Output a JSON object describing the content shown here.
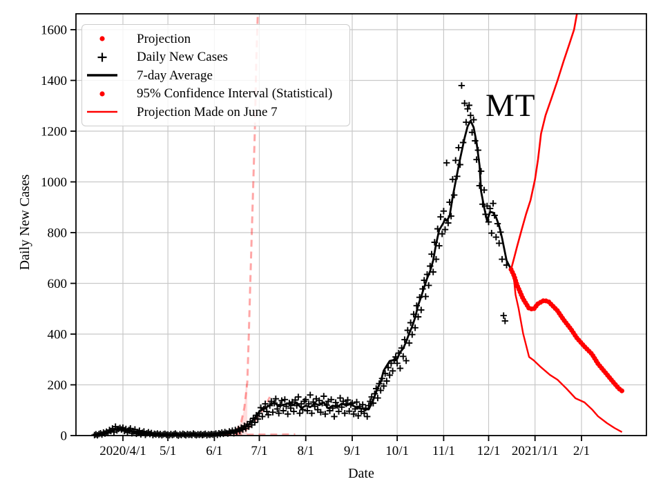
{
  "legend": {
    "items": [
      {
        "label": "Projection",
        "marker": "dot",
        "color": "#ff0000"
      },
      {
        "label": "Daily New Cases",
        "marker": "plus",
        "color": "#000000"
      },
      {
        "label": "7-day Average",
        "marker": "line",
        "color": "#000000"
      },
      {
        "label": "95% Confidence Interval (Statistical)",
        "marker": "dot",
        "color": "#ff0000"
      },
      {
        "label": "Projection Made on June 7",
        "marker": "line",
        "color": "#ff0000"
      }
    ]
  },
  "chart_data": {
    "type": "line+scatter",
    "title": "",
    "xlabel": "Date",
    "ylabel": "Daily New Cases",
    "annotation": "MT",
    "ylim": [
      0,
      1662
    ],
    "xlim": [
      "2020-03-01",
      "2021-03-16"
    ],
    "grid": true,
    "legend_position": "upper-left",
    "y_ticks": [
      0,
      200,
      400,
      600,
      800,
      1000,
      1200,
      1400,
      1600
    ],
    "x_ticks": [
      {
        "date": "2020-04-01",
        "label": "2020/4/1"
      },
      {
        "date": "2020-05-01",
        "label": "5/1"
      },
      {
        "date": "2020-06-01",
        "label": "6/1"
      },
      {
        "date": "2020-07-01",
        "label": "7/1"
      },
      {
        "date": "2020-08-01",
        "label": "8/1"
      },
      {
        "date": "2020-09-01",
        "label": "9/1"
      },
      {
        "date": "2020-10-01",
        "label": "10/1"
      },
      {
        "date": "2020-11-01",
        "label": "11/1"
      },
      {
        "date": "2020-12-01",
        "label": "12/1"
      },
      {
        "date": "2021-01-01",
        "label": "2021/1/1"
      },
      {
        "date": "2021-02-01",
        "label": "2/1"
      }
    ],
    "style": {
      "red": "#ff0000",
      "black": "#000000",
      "faded_red": "rgba(255,0,0,0.35)",
      "band_fill": "rgba(255,0,0,0.13)",
      "grid_color": "#c8c8c8",
      "background": "#ffffff"
    },
    "series": [
      {
        "name": "daily_new_cases",
        "type": "scatter",
        "marker": "plus",
        "color": "#000000",
        "start_date": "2020-03-13",
        "values": [
          2,
          5,
          1,
          6,
          9,
          4,
          12,
          8,
          15,
          10,
          22,
          18,
          28,
          14,
          35,
          20,
          26,
          30,
          24,
          31,
          18,
          26,
          12,
          22,
          28,
          9,
          16,
          24,
          7,
          14,
          19,
          5,
          11,
          16,
          3,
          9,
          13,
          6,
          10,
          2,
          7,
          4,
          8,
          3,
          6,
          1,
          5,
          7,
          3,
          4,
          1,
          6,
          2,
          5,
          8,
          3,
          0,
          5,
          2,
          7,
          4,
          1,
          6,
          3,
          5,
          2,
          8,
          4,
          1,
          5,
          3,
          6,
          2,
          4,
          7,
          1,
          5,
          3,
          6,
          4,
          5,
          8,
          3,
          9,
          6,
          12,
          7,
          14,
          10,
          8,
          16,
          12,
          19,
          9,
          22,
          15,
          26,
          18,
          31,
          24,
          38,
          28,
          45,
          35,
          55,
          42,
          68,
          52,
          80,
          65,
          88,
          110,
          75,
          105,
          125,
          95,
          82,
          118,
          135,
          92,
          128,
          145,
          105,
          88,
          122,
          138,
          98,
          142,
          115,
          85,
          128,
          108,
          132,
          95,
          140,
          118,
          152,
          88,
          125,
          102,
          135,
          142,
          98,
          125,
          160,
          88,
          132,
          115,
          145,
          102,
          138,
          92,
          128,
          155,
          85,
          120,
          135,
          98,
          142,
          108,
          75,
          130,
          118,
          95,
          148,
          112,
          135,
          88,
          125,
          140,
          96,
          122,
          128,
          85,
          105,
          132,
          78,
          115,
          95,
          122,
          88,
          108,
          75,
          118,
          135,
          152,
          128,
          165,
          185,
          148,
          205,
          178,
          225,
          195,
          245,
          215,
          268,
          238,
          285,
          255,
          295,
          310,
          285,
          325,
          265,
          345,
          312,
          378,
          295,
          415,
          365,
          445,
          398,
          478,
          425,
          512,
          468,
          545,
          495,
          578,
          612,
          548,
          635,
          592,
          668,
          715,
          645,
          762,
          695,
          815,
          748,
          862,
          795,
          885,
          812,
          1075,
          838,
          920,
          865,
          1010,
          948,
          1085,
          1022,
          1135,
          1068,
          1380,
          1155,
          1310,
          1235,
          1288,
          1302,
          1262,
          1195,
          1245,
          1162,
          1088,
          1125,
          985,
          1042,
          912,
          968,
          872,
          905,
          842,
          895,
          798,
          915,
          868,
          782,
          835,
          758,
          802,
          695,
          473,
          452,
          672
        ]
      },
      {
        "name": "seven_day_average",
        "type": "line",
        "color": "#000000",
        "points": [
          [
            "2020-03-14",
            3
          ],
          [
            "2020-03-18",
            9
          ],
          [
            "2020-03-22",
            15
          ],
          [
            "2020-03-26",
            22
          ],
          [
            "2020-03-30",
            25
          ],
          [
            "2020-04-03",
            21
          ],
          [
            "2020-04-08",
            15
          ],
          [
            "2020-04-14",
            9
          ],
          [
            "2020-04-20",
            6
          ],
          [
            "2020-04-28",
            4
          ],
          [
            "2020-05-06",
            3
          ],
          [
            "2020-05-14",
            3
          ],
          [
            "2020-05-22",
            4
          ],
          [
            "2020-05-29",
            5
          ],
          [
            "2020-06-05",
            8
          ],
          [
            "2020-06-10",
            12
          ],
          [
            "2020-06-15",
            18
          ],
          [
            "2020-06-20",
            30
          ],
          [
            "2020-06-24",
            45
          ],
          [
            "2020-06-28",
            70
          ],
          [
            "2020-07-01",
            95
          ],
          [
            "2020-07-04",
            105
          ],
          [
            "2020-07-08",
            120
          ],
          [
            "2020-07-11",
            130
          ],
          [
            "2020-07-14",
            115
          ],
          [
            "2020-07-17",
            121
          ],
          [
            "2020-07-20",
            126
          ],
          [
            "2020-07-23",
            119
          ],
          [
            "2020-07-26",
            130
          ],
          [
            "2020-07-29",
            108
          ],
          [
            "2020-08-01",
            118
          ],
          [
            "2020-08-04",
            112
          ],
          [
            "2020-08-07",
            126
          ],
          [
            "2020-08-10",
            120
          ],
          [
            "2020-08-13",
            131
          ],
          [
            "2020-08-16",
            107
          ],
          [
            "2020-08-19",
            118
          ],
          [
            "2020-08-22",
            112
          ],
          [
            "2020-08-25",
            126
          ],
          [
            "2020-08-28",
            119
          ],
          [
            "2020-08-31",
            124
          ],
          [
            "2020-09-03",
            113
          ],
          [
            "2020-09-06",
            108
          ],
          [
            "2020-09-09",
            104
          ],
          [
            "2020-09-12",
            103
          ],
          [
            "2020-09-15",
            140
          ],
          [
            "2020-09-18",
            188
          ],
          [
            "2020-09-20",
            212
          ],
          [
            "2020-09-22",
            256
          ],
          [
            "2020-09-24",
            275
          ],
          [
            "2020-09-26",
            294
          ],
          [
            "2020-09-28",
            297
          ],
          [
            "2020-10-01",
            302
          ],
          [
            "2020-10-03",
            329
          ],
          [
            "2020-10-05",
            343
          ],
          [
            "2020-10-07",
            370
          ],
          [
            "2020-10-09",
            403
          ],
          [
            "2020-10-11",
            430
          ],
          [
            "2020-10-13",
            465
          ],
          [
            "2020-10-15",
            514
          ],
          [
            "2020-10-17",
            547
          ],
          [
            "2020-10-19",
            585
          ],
          [
            "2020-10-21",
            620
          ],
          [
            "2020-10-23",
            648
          ],
          [
            "2020-10-25",
            690
          ],
          [
            "2020-10-27",
            756
          ],
          [
            "2020-10-29",
            810
          ],
          [
            "2020-11-01",
            840
          ],
          [
            "2020-11-02",
            855
          ],
          [
            "2020-11-03",
            846
          ],
          [
            "2020-11-05",
            865
          ],
          [
            "2020-11-07",
            940
          ],
          [
            "2020-11-09",
            1001
          ],
          [
            "2020-11-12",
            1091
          ],
          [
            "2020-11-15",
            1173
          ],
          [
            "2020-11-17",
            1219
          ],
          [
            "2020-11-19",
            1241
          ],
          [
            "2020-11-21",
            1215
          ],
          [
            "2020-11-23",
            1154
          ],
          [
            "2020-11-25",
            1064
          ],
          [
            "2020-11-26",
            963
          ],
          [
            "2020-11-28",
            900
          ],
          [
            "2020-11-30",
            846
          ],
          [
            "2020-12-02",
            882
          ],
          [
            "2020-12-04",
            879
          ],
          [
            "2020-12-06",
            860
          ],
          [
            "2020-12-08",
            827
          ],
          [
            "2020-12-10",
            778
          ],
          [
            "2020-12-13",
            690
          ],
          [
            "2020-12-16",
            655
          ]
        ]
      },
      {
        "name": "projection",
        "type": "line",
        "style_hint": "thick-dotted",
        "color": "#ff0000",
        "points": [
          [
            "2020-12-16",
            655
          ],
          [
            "2020-12-18",
            630
          ],
          [
            "2020-12-20",
            593
          ],
          [
            "2020-12-24",
            539
          ],
          [
            "2020-12-28",
            501
          ],
          [
            "2020-12-31",
            498
          ],
          [
            "2021-01-03",
            520
          ],
          [
            "2021-01-07",
            533
          ],
          [
            "2021-01-10",
            528
          ],
          [
            "2021-01-16",
            492
          ],
          [
            "2021-01-20",
            457
          ],
          [
            "2021-01-25",
            419
          ],
          [
            "2021-01-29",
            384
          ],
          [
            "2021-02-03",
            351
          ],
          [
            "2021-02-08",
            321
          ],
          [
            "2021-02-12",
            283
          ],
          [
            "2021-02-17",
            248
          ],
          [
            "2021-02-22",
            212
          ],
          [
            "2021-02-26",
            185
          ],
          [
            "2021-02-28",
            176
          ]
        ]
      },
      {
        "name": "ci_upper",
        "type": "line",
        "color": "#ff0000",
        "points": [
          [
            "2020-12-16",
            655
          ],
          [
            "2020-12-18",
            700
          ],
          [
            "2020-12-20",
            745
          ],
          [
            "2020-12-23",
            810
          ],
          [
            "2020-12-26",
            873
          ],
          [
            "2020-12-29",
            928
          ],
          [
            "2021-01-01",
            1010
          ],
          [
            "2021-01-03",
            1090
          ],
          [
            "2021-01-05",
            1190
          ],
          [
            "2021-01-08",
            1262
          ],
          [
            "2021-01-12",
            1330
          ],
          [
            "2021-01-16",
            1400
          ],
          [
            "2021-01-20",
            1475
          ],
          [
            "2021-01-24",
            1545
          ],
          [
            "2021-01-27",
            1600
          ],
          [
            "2021-01-29",
            1665
          ]
        ]
      },
      {
        "name": "ci_lower",
        "type": "line",
        "color": "#ff0000",
        "points": [
          [
            "2020-12-16",
            655
          ],
          [
            "2020-12-18",
            610
          ],
          [
            "2020-12-19",
            555
          ],
          [
            "2020-12-21",
            501
          ],
          [
            "2020-12-24",
            403
          ],
          [
            "2020-12-28",
            310
          ],
          [
            "2020-12-31",
            297
          ],
          [
            "2021-01-05",
            269
          ],
          [
            "2021-01-11",
            239
          ],
          [
            "2021-01-16",
            220
          ],
          [
            "2021-01-22",
            185
          ],
          [
            "2021-01-28",
            147
          ],
          [
            "2021-02-03",
            131
          ],
          [
            "2021-02-08",
            103
          ],
          [
            "2021-02-12",
            76
          ],
          [
            "2021-02-18",
            49
          ],
          [
            "2021-02-23",
            30
          ],
          [
            "2021-02-28",
            14
          ]
        ]
      },
      {
        "name": "june7_ci_upper",
        "type": "line",
        "style_hint": "dashed-faded",
        "color": "rgba(255,0,0,0.35)",
        "points": [
          [
            "2020-06-07",
            3
          ],
          [
            "2020-06-12",
            8
          ],
          [
            "2020-06-16",
            22
          ],
          [
            "2020-06-19",
            55
          ],
          [
            "2020-06-21",
            110
          ],
          [
            "2020-06-23",
            210
          ],
          [
            "2020-06-24",
            400
          ],
          [
            "2020-06-25",
            600
          ],
          [
            "2020-06-26",
            800
          ],
          [
            "2020-06-27",
            1000
          ],
          [
            "2020-06-28",
            1200
          ],
          [
            "2020-06-29",
            1480
          ],
          [
            "2020-06-30",
            1665
          ]
        ]
      },
      {
        "name": "june7_projection_median",
        "type": "line",
        "style_hint": "dashed-faded",
        "color": "rgba(255,0,0,0.35)",
        "points": [
          [
            "2020-06-07",
            2
          ],
          [
            "2020-06-14",
            6
          ],
          [
            "2020-06-18",
            12
          ],
          [
            "2020-06-22",
            22
          ],
          [
            "2020-06-25",
            35
          ],
          [
            "2020-06-28",
            55
          ],
          [
            "2020-07-01",
            84
          ],
          [
            "2020-07-03",
            98
          ],
          [
            "2020-07-05",
            115
          ],
          [
            "2020-07-07",
            140
          ],
          [
            "2020-07-08",
            152
          ]
        ]
      },
      {
        "name": "june7_ci_lower",
        "type": "line",
        "style_hint": "dashed-faded",
        "color": "rgba(255,0,0,0.35)",
        "points": [
          [
            "2020-06-07",
            1
          ],
          [
            "2020-06-20",
            3
          ],
          [
            "2020-07-01",
            4
          ],
          [
            "2020-07-12",
            4
          ],
          [
            "2020-07-25",
            5
          ]
        ]
      },
      {
        "name": "june7_confidence_band",
        "type": "band",
        "color": "rgba(255,0,0,0.13)",
        "points": [
          [
            "2020-06-07",
            2
          ],
          [
            "2020-06-15",
            18
          ],
          [
            "2020-06-19",
            55
          ],
          [
            "2020-06-21",
            110
          ],
          [
            "2020-06-22",
            200
          ],
          [
            "2020-06-23",
            210
          ],
          [
            "2020-06-23",
            5
          ],
          [
            "2020-06-15",
            2
          ],
          [
            "2020-06-07",
            1
          ]
        ]
      }
    ]
  }
}
